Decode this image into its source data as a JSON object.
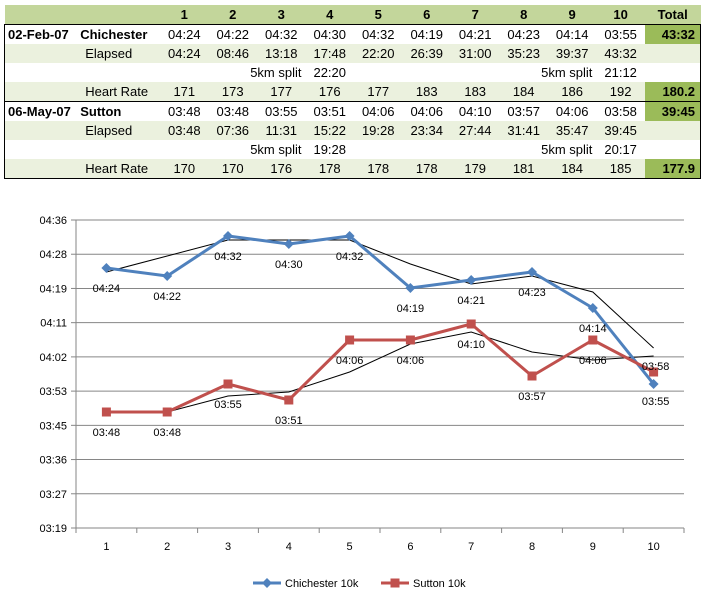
{
  "table": {
    "headers": [
      "1",
      "2",
      "3",
      "4",
      "5",
      "6",
      "7",
      "8",
      "9",
      "10"
    ],
    "total_label": "Total",
    "races": [
      {
        "date": "02-Feb-07",
        "name": "Chichester",
        "splits": [
          "04:24",
          "04:22",
          "04:32",
          "04:30",
          "04:32",
          "04:19",
          "04:21",
          "04:23",
          "04:14",
          "03:55"
        ],
        "total": "43:32",
        "elapsed_label": "Elapsed",
        "elapsed": [
          "04:24",
          "08:46",
          "13:18",
          "17:48",
          "22:20",
          "26:39",
          "31:00",
          "35:23",
          "39:37",
          "43:32"
        ],
        "split5_label": "5km split",
        "split5_first": "22:20",
        "split5_second": "21:12",
        "hr_label": "Heart Rate",
        "hr": [
          "171",
          "173",
          "177",
          "176",
          "177",
          "183",
          "183",
          "184",
          "186",
          "192"
        ],
        "hr_avg": "180.2"
      },
      {
        "date": "06-May-07",
        "name": "Sutton",
        "splits": [
          "03:48",
          "03:48",
          "03:55",
          "03:51",
          "04:06",
          "04:06",
          "04:10",
          "03:57",
          "04:06",
          "03:58"
        ],
        "total": "39:45",
        "elapsed_label": "Elapsed",
        "elapsed": [
          "03:48",
          "07:36",
          "11:31",
          "15:22",
          "19:28",
          "23:34",
          "27:44",
          "31:41",
          "35:47",
          "39:45"
        ],
        "split5_label": "5km split",
        "split5_first": "19:28",
        "split5_second": "20:17",
        "hr_label": "Heart Rate",
        "hr": [
          "170",
          "170",
          "176",
          "178",
          "178",
          "178",
          "179",
          "181",
          "184",
          "185"
        ],
        "hr_avg": "177.9"
      }
    ]
  },
  "chart_data": {
    "type": "line",
    "x": [
      "1",
      "2",
      "3",
      "4",
      "5",
      "6",
      "7",
      "8",
      "9",
      "10"
    ],
    "y_ticks": [
      "03:19",
      "03:27",
      "03:36",
      "03:45",
      "03:53",
      "04:02",
      "04:11",
      "04:19",
      "04:28",
      "04:36"
    ],
    "ylim": [
      "03:19",
      "04:36"
    ],
    "grid": true,
    "legend_position": "bottom",
    "series": [
      {
        "name": "Chichester 10k",
        "color": "#4f81bd",
        "marker": "diamond",
        "values": [
          "04:24",
          "04:22",
          "04:32",
          "04:30",
          "04:32",
          "04:19",
          "04:21",
          "04:23",
          "04:14",
          "03:55"
        ],
        "labels": [
          "04:24",
          "04:22",
          "04:32",
          "04:30",
          "04:32",
          "04:19",
          "04:21",
          "04:23",
          "04:14",
          "03:55"
        ],
        "trend": [
          "04:23",
          "04:27",
          "04:31",
          "04:31",
          "04:31",
          "04:25",
          "04:20",
          "04:22",
          "04:18",
          "04:04"
        ]
      },
      {
        "name": "Sutton 10k",
        "color": "#c0504d",
        "marker": "square",
        "values": [
          "03:48",
          "03:48",
          "03:55",
          "03:51",
          "04:06",
          "04:06",
          "04:10",
          "03:57",
          "04:06",
          "03:58"
        ],
        "labels": [
          "03:48",
          "03:48",
          "03:55",
          "03:51",
          "04:06",
          "04:06",
          "04:10",
          "03:57",
          "04:06",
          "03:58"
        ],
        "trend": [
          "03:48",
          "03:48",
          "03:52",
          "03:53",
          "03:58",
          "04:05",
          "04:08",
          "04:03",
          "04:01",
          "04:02"
        ]
      }
    ]
  }
}
